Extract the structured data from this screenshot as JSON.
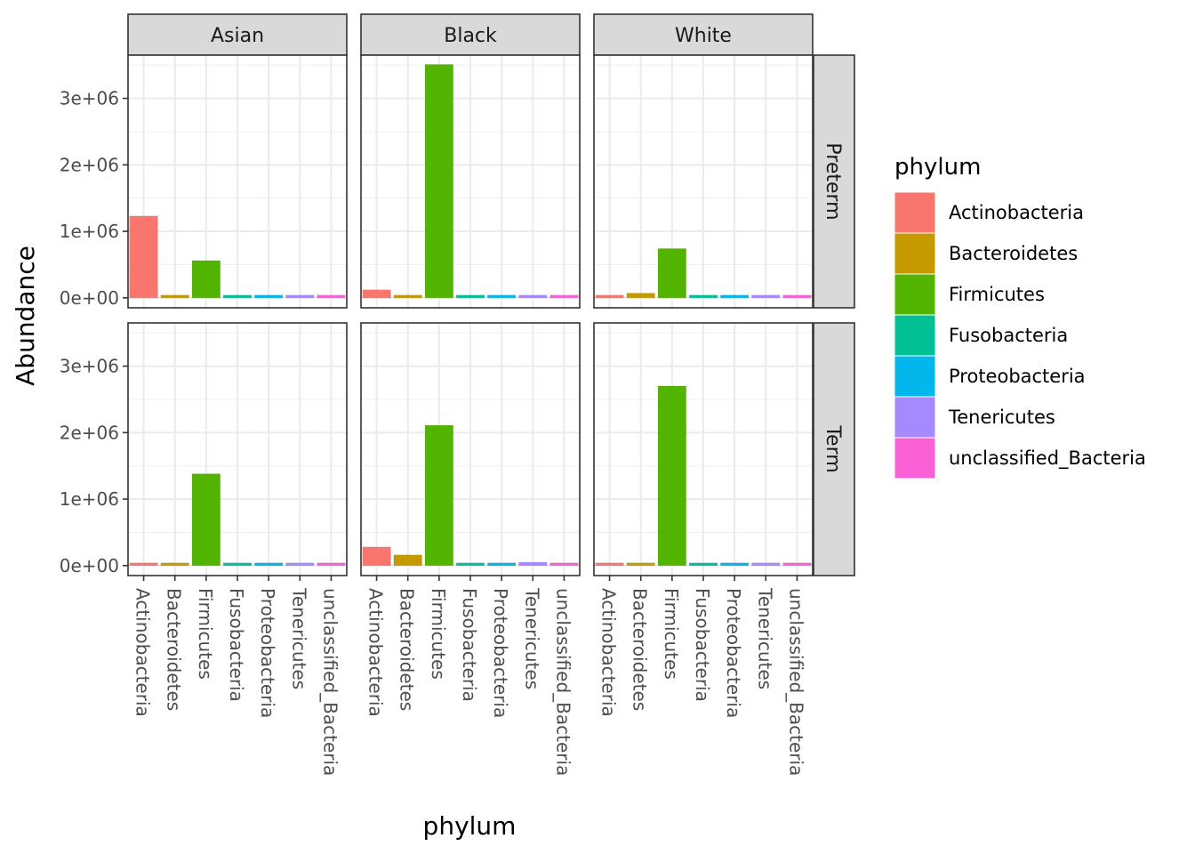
{
  "chart_data": {
    "type": "bar",
    "facet_cols": [
      "Asian",
      "Black",
      "White"
    ],
    "facet_rows": [
      "Preterm",
      "Term"
    ],
    "categories": [
      "Actinobacteria",
      "Bacteroidetes",
      "Firmicutes",
      "Fusobacteria",
      "Proteobacteria",
      "Tenericutes",
      "unclassified_Bacteria"
    ],
    "xlabel": "phylum",
    "ylabel": "Abundance",
    "ylim": [
      -150000,
      3650000
    ],
    "y_ticks": [
      0,
      1000000,
      2000000,
      3000000
    ],
    "y_tick_labels": [
      "0e+00",
      "1e+06",
      "2e+06",
      "3e+06"
    ],
    "grid": true,
    "legend": {
      "title": "phylum",
      "position": "right",
      "entries": [
        "Actinobacteria",
        "Bacteroidetes",
        "Firmicutes",
        "Fusobacteria",
        "Proteobacteria",
        "Tenericutes",
        "unclassified_Bacteria"
      ]
    },
    "colors": [
      "#F8766D",
      "#C49A00",
      "#53B400",
      "#00C094",
      "#00B6EB",
      "#A58AFF",
      "#FB61D7"
    ],
    "panels": [
      {
        "col": "Asian",
        "row": "Preterm",
        "values": [
          1230000,
          40000,
          560000,
          10000,
          10000,
          15000,
          20000
        ]
      },
      {
        "col": "Black",
        "row": "Preterm",
        "values": [
          120000,
          40000,
          3510000,
          20000,
          40000,
          30000,
          10000
        ]
      },
      {
        "col": "White",
        "row": "Preterm",
        "values": [
          30000,
          70000,
          740000,
          20000,
          30000,
          20000,
          10000
        ]
      },
      {
        "col": "Asian",
        "row": "Term",
        "values": [
          30000,
          15000,
          1380000,
          10000,
          10000,
          10000,
          15000
        ]
      },
      {
        "col": "Black",
        "row": "Term",
        "values": [
          280000,
          160000,
          2110000,
          30000,
          15000,
          50000,
          30000
        ]
      },
      {
        "col": "White",
        "row": "Term",
        "values": [
          30000,
          30000,
          2700000,
          15000,
          30000,
          15000,
          15000
        ]
      }
    ]
  }
}
